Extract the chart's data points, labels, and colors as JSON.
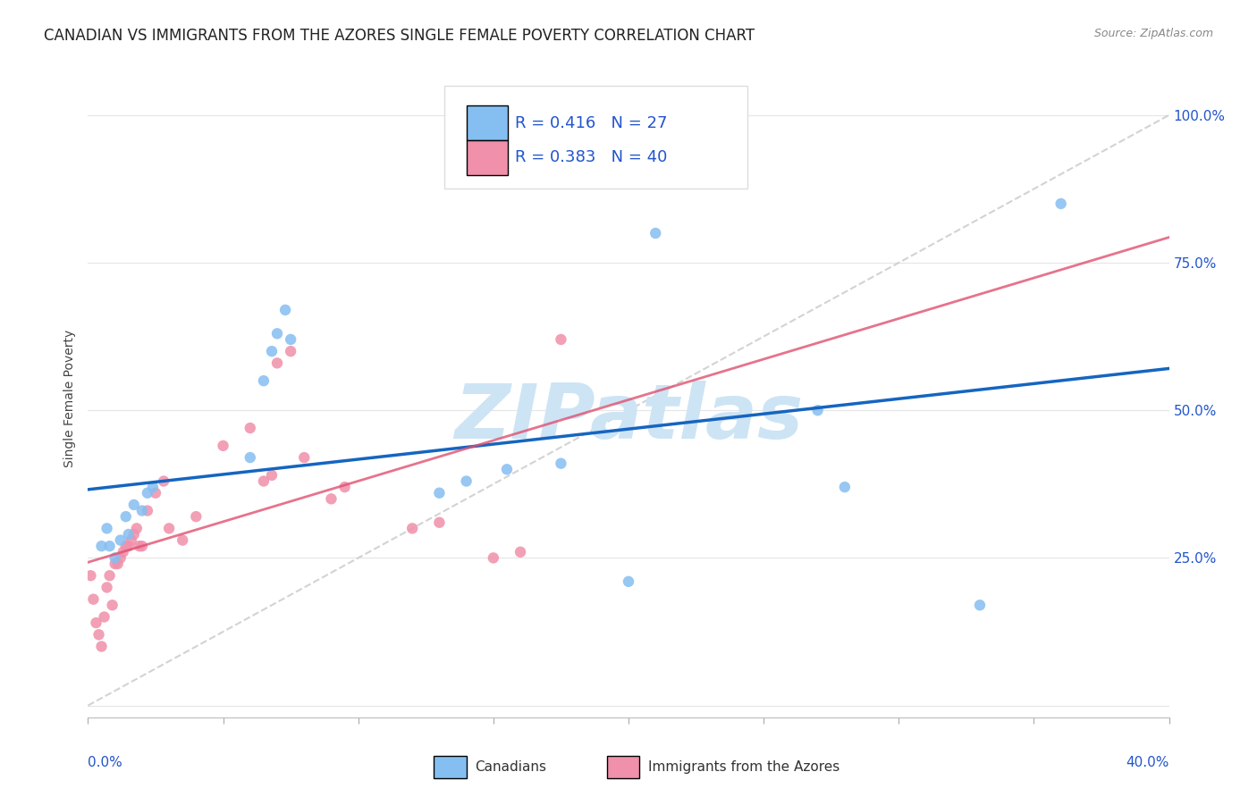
{
  "title": "CANADIAN VS IMMIGRANTS FROM THE AZORES SINGLE FEMALE POVERTY CORRELATION CHART",
  "source": "Source: ZipAtlas.com",
  "ylabel": "Single Female Poverty",
  "yticks": [
    0.0,
    0.25,
    0.5,
    0.75,
    1.0
  ],
  "ytick_labels": [
    "",
    "25.0%",
    "50.0%",
    "75.0%",
    "100.0%"
  ],
  "xrange": [
    0.0,
    0.4
  ],
  "yrange": [
    -0.02,
    1.06
  ],
  "canadians_x": [
    0.005,
    0.007,
    0.008,
    0.01,
    0.012,
    0.014,
    0.015,
    0.017,
    0.02,
    0.022,
    0.024,
    0.06,
    0.065,
    0.068,
    0.07,
    0.073,
    0.075,
    0.13,
    0.14,
    0.155,
    0.175,
    0.2,
    0.21,
    0.27,
    0.28,
    0.33,
    0.36
  ],
  "canadians_y": [
    0.27,
    0.3,
    0.27,
    0.25,
    0.28,
    0.32,
    0.29,
    0.34,
    0.33,
    0.36,
    0.37,
    0.42,
    0.55,
    0.6,
    0.63,
    0.67,
    0.62,
    0.36,
    0.38,
    0.4,
    0.41,
    0.21,
    0.8,
    0.5,
    0.37,
    0.17,
    0.85
  ],
  "azores_x": [
    0.001,
    0.002,
    0.003,
    0.004,
    0.005,
    0.006,
    0.007,
    0.008,
    0.009,
    0.01,
    0.011,
    0.012,
    0.013,
    0.014,
    0.015,
    0.016,
    0.017,
    0.018,
    0.019,
    0.02,
    0.022,
    0.025,
    0.028,
    0.03,
    0.035,
    0.04,
    0.05,
    0.06,
    0.065,
    0.068,
    0.07,
    0.075,
    0.08,
    0.09,
    0.095,
    0.12,
    0.13,
    0.15,
    0.16,
    0.175
  ],
  "azores_y": [
    0.22,
    0.18,
    0.14,
    0.12,
    0.1,
    0.15,
    0.2,
    0.22,
    0.17,
    0.24,
    0.24,
    0.25,
    0.26,
    0.27,
    0.27,
    0.28,
    0.29,
    0.3,
    0.27,
    0.27,
    0.33,
    0.36,
    0.38,
    0.3,
    0.28,
    0.32,
    0.44,
    0.47,
    0.38,
    0.39,
    0.58,
    0.6,
    0.42,
    0.35,
    0.37,
    0.3,
    0.31,
    0.25,
    0.26,
    0.62
  ],
  "blue_line_color": "#1565c0",
  "pink_line_color": "#e05070",
  "diag_line_color": "#c8c8c8",
  "watermark": "ZIPatlas",
  "watermark_color": "#cde4f5",
  "dot_color_canadians": "#85bef0",
  "dot_color_azores": "#f090aa",
  "dot_size": 80,
  "grid_color": "#e5e5e5",
  "background_color": "#ffffff",
  "title_fontsize": 12,
  "axis_label_fontsize": 10,
  "tick_fontsize": 11,
  "legend_fontsize": 13,
  "r_canadians": "0.416",
  "n_canadians": "27",
  "r_azores": "0.383",
  "n_azores": "40"
}
